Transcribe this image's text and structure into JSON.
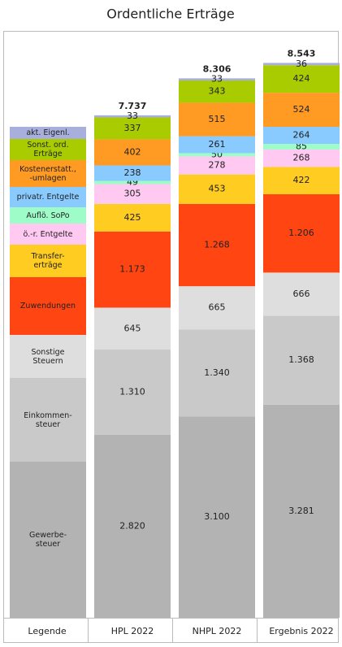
{
  "chart_data": {
    "type": "stacked_bar",
    "title": "Ordentliche Erträge",
    "legend_label": "Legende",
    "categories": [
      "HPL 2022",
      "NHPL 2022",
      "Ergebnis 2022"
    ],
    "ylim": [
      0,
      9500
    ],
    "series": [
      {
        "name": "Gewerbe-\nsteuer",
        "color": "#b3b3b3",
        "values": [
          2820,
          3100,
          3281
        ],
        "value_labels": [
          "2.820",
          "3.100",
          "3.281"
        ]
      },
      {
        "name": "Einkommen-\nsteuer",
        "color": "#c9c9c9",
        "values": [
          1310,
          1340,
          1368
        ],
        "value_labels": [
          "1.310",
          "1.340",
          "1.368"
        ]
      },
      {
        "name": "Sonstige\nSteuern",
        "color": "#dedede",
        "values": [
          645,
          665,
          666
        ]
      },
      {
        "name": "Zuwendungen",
        "color": "#ff4512",
        "values": [
          1173,
          1268,
          1206
        ],
        "value_labels": [
          "1.173",
          "1.268",
          "1.206"
        ]
      },
      {
        "name": "Transfer-\nerträge",
        "color": "#ffcc22",
        "values": [
          425,
          453,
          422
        ]
      },
      {
        "name": "ö.-r. Entgelte",
        "color": "#ffc9f2",
        "values": [
          305,
          278,
          268
        ]
      },
      {
        "name": "Auflö. SoPo",
        "color": "#9dfcc8",
        "values": [
          49,
          50,
          85
        ]
      },
      {
        "name": "privatr. Entgelte",
        "color": "#8acbff",
        "values": [
          238,
          261,
          264
        ]
      },
      {
        "name": "Kostenerstatt.,\n-umlagen",
        "color": "#ff9a22",
        "values": [
          402,
          515,
          524
        ]
      },
      {
        "name": "Sonst. ord.\nErträge",
        "color": "#a8cc00",
        "values": [
          337,
          343,
          424
        ]
      },
      {
        "name": "akt. Eigenl.",
        "color": "#a9afdd",
        "values": [
          33,
          33,
          36
        ]
      }
    ],
    "totals": [
      7737,
      8306,
      8543
    ],
    "total_value_labels": [
      "7.737",
      "8.306",
      "8.543"
    ]
  }
}
